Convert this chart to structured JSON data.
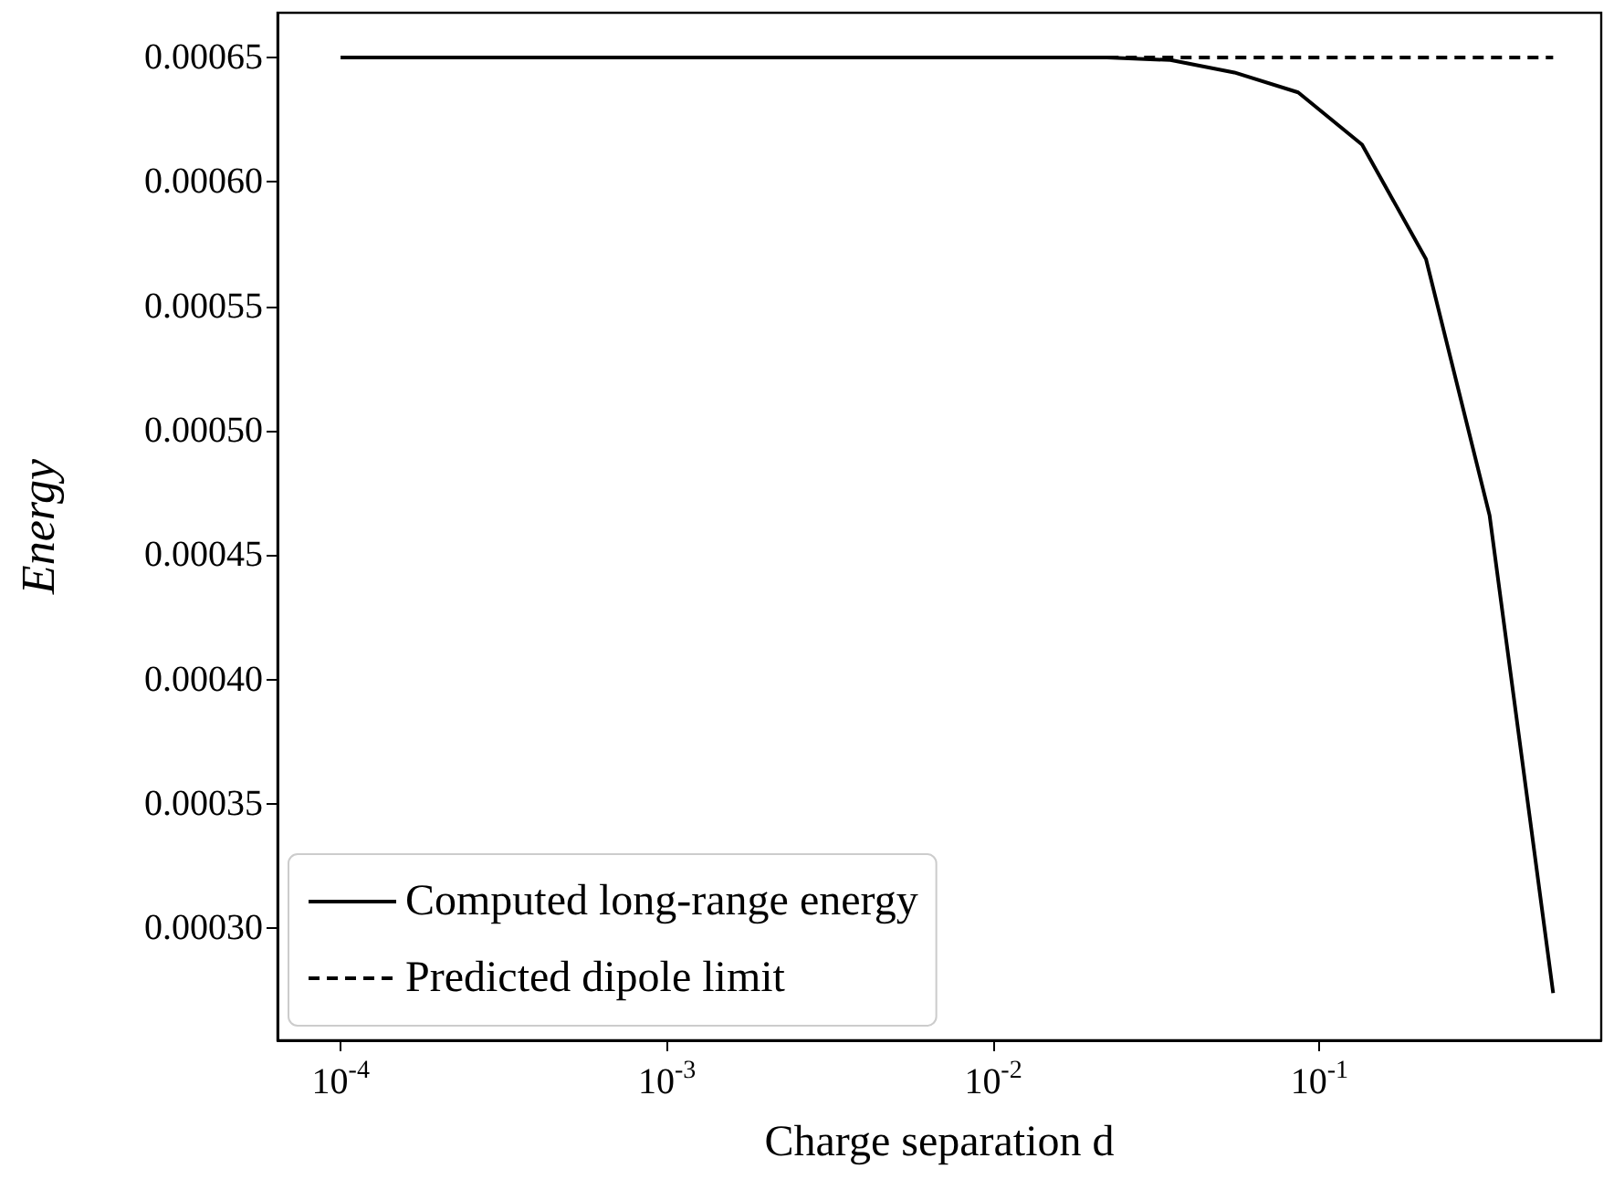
{
  "chart_data": {
    "type": "line",
    "xlabel": "Charge separation d",
    "ylabel": "Energy",
    "log": "x",
    "grid": false,
    "legend": "bottom left",
    "marker": "none",
    "xlim": [
      6.4e-05,
      0.73
    ],
    "ylim": [
      0.000255,
      0.000668
    ],
    "xticks": [
      {
        "value": 0.0001,
        "label": "10$^{-4}$"
      },
      {
        "value": 0.001,
        "label": "10$^{-3}$"
      },
      {
        "value": 0.01,
        "label": "10$^{-2}$"
      },
      {
        "value": 0.1,
        "label": "10$^{-1}$"
      }
    ],
    "yticks": [
      {
        "value": 0.0003,
        "label": "0.00030"
      },
      {
        "value": 0.00035,
        "label": "0.00035"
      },
      {
        "value": 0.0004,
        "label": "0.00040"
      },
      {
        "value": 0.00045,
        "label": "0.00045"
      },
      {
        "value": 0.0005,
        "label": "0.00050"
      },
      {
        "value": 0.00055,
        "label": "0.00055"
      },
      {
        "value": 0.0006,
        "label": "0.00060"
      },
      {
        "value": 0.00065,
        "label": "0.00065"
      }
    ],
    "series": [
      {
        "name": "Computed long-range energy",
        "color": "#000000",
        "line_style": "solid",
        "x": [
          0.0001,
          0.000157,
          0.000246,
          0.000386,
          0.000606,
          0.00095,
          0.00149,
          0.00234,
          0.00367,
          0.00576,
          0.00904,
          0.0142,
          0.0223,
          0.0349,
          0.0548,
          0.086,
          0.135,
          0.212,
          0.332,
          0.52
        ],
        "values": [
          0.00065,
          0.00065,
          0.00065,
          0.00065,
          0.00065,
          0.00065,
          0.00065,
          0.00065,
          0.00065,
          0.00065,
          0.00065,
          0.00065,
          0.00065,
          0.000649,
          0.000644,
          0.000636,
          0.000615,
          0.000569,
          0.000466,
          0.000274
        ]
      },
      {
        "name": "Predicted dipole limit",
        "color": "#000000",
        "line_style": "dashed",
        "x": [
          0.0001,
          0.52
        ],
        "values": [
          0.00065,
          0.00065
        ]
      }
    ]
  }
}
